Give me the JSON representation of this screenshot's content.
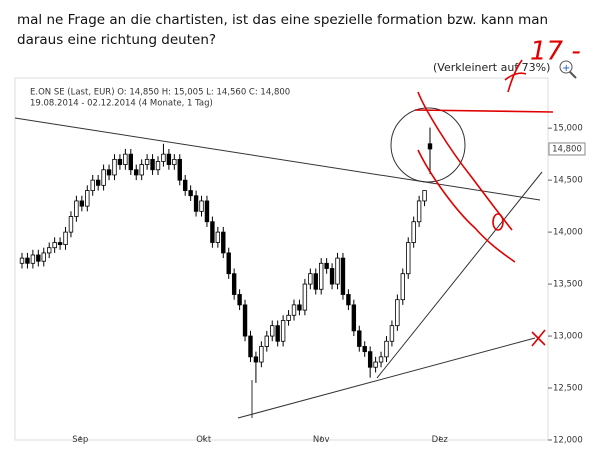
{
  "post": {
    "text_line1": "mal ne Frage an die chartisten, ist das eine spezielle formation bzw. kann man",
    "text_line2": "daraus eine richtung deuten?",
    "zoom_note": "(Verkleinert auf 73%)",
    "annotation": "17 -"
  },
  "chart_data": {
    "type": "candlestick",
    "header": "E.ON SE (Last, EUR)  O: 14,850  H: 15,005  L: 14,560  C: 14,800",
    "range_label": "19.08.2014 - 02.12.2014 (4 Monate, 1 Tag)",
    "last_price_label": {
      "value": 14800,
      "label": "14,800"
    },
    "up_color": "#ffffff",
    "down_color": "#000000",
    "open": [
      13700,
      13750,
      13700,
      13780,
      13720,
      13800,
      13850,
      13900,
      13880,
      14000,
      14150,
      14300,
      14250,
      14400,
      14500,
      14450,
      14600,
      14550,
      14700,
      14650,
      14750,
      14600,
      14550,
      14650,
      14700,
      14600,
      14680,
      14750,
      14650,
      14700,
      14500,
      14400,
      14350,
      14200,
      14300,
      14100,
      13900,
      14000,
      13800,
      13600,
      13400,
      13300,
      13000,
      12800,
      12750,
      12900,
      13000,
      13100,
      12950,
      13150,
      13200,
      13300,
      13250,
      13500,
      13600,
      13450,
      13700,
      13650,
      13500,
      13750,
      13400,
      13300,
      13050,
      12900,
      12850,
      12700,
      12750,
      12800,
      12950,
      13100,
      13350,
      13600,
      13900,
      14100,
      14300,
      14850
    ],
    "high": [
      13800,
      13800,
      13830,
      13830,
      13850,
      13900,
      13950,
      13950,
      14050,
      14200,
      14350,
      14350,
      14450,
      14550,
      14550,
      14650,
      14650,
      14750,
      14750,
      14800,
      14800,
      14650,
      14700,
      14750,
      14750,
      14730,
      14850,
      14800,
      14750,
      14750,
      14550,
      14450,
      14400,
      14350,
      14350,
      14150,
      14050,
      14050,
      13850,
      13650,
      13450,
      13350,
      13050,
      12850,
      12950,
      13050,
      13150,
      13150,
      13200,
      13250,
      13350,
      13350,
      13550,
      13650,
      13650,
      13750,
      13750,
      13700,
      13800,
      13800,
      13450,
      13350,
      13100,
      12950,
      12900,
      12800,
      12850,
      13000,
      13150,
      13400,
      13650,
      13950,
      14150,
      14350,
      14400,
      15005
    ],
    "low": [
      13650,
      13650,
      13650,
      13670,
      13670,
      13750,
      13800,
      13830,
      13830,
      13950,
      14100,
      14200,
      14200,
      14350,
      14400,
      14400,
      14500,
      14500,
      14600,
      14600,
      14550,
      14500,
      14500,
      14600,
      14550,
      14550,
      14630,
      14600,
      14600,
      14450,
      14350,
      14300,
      14150,
      14150,
      14050,
      13850,
      13850,
      13750,
      13550,
      13350,
      13250,
      12950,
      12750,
      12550,
      12700,
      12850,
      12950,
      12900,
      12900,
      13100,
      13150,
      13200,
      13200,
      13450,
      13400,
      13400,
      13600,
      13450,
      13450,
      13350,
      13250,
      13000,
      12850,
      12800,
      12600,
      12650,
      12700,
      12750,
      12900,
      13050,
      13300,
      13550,
      13850,
      14050,
      14250,
      14560
    ],
    "close": [
      13750,
      13700,
      13780,
      13720,
      13800,
      13850,
      13900,
      13880,
      14000,
      14150,
      14300,
      14250,
      14400,
      14500,
      14450,
      14600,
      14550,
      14700,
      14650,
      14750,
      14600,
      14550,
      14650,
      14700,
      14600,
      14680,
      14750,
      14650,
      14700,
      14500,
      14400,
      14350,
      14200,
      14300,
      14100,
      13900,
      14000,
      13800,
      13600,
      13400,
      13300,
      13000,
      12800,
      12750,
      12900,
      13000,
      13100,
      12950,
      13150,
      13200,
      13300,
      13250,
      13500,
      13600,
      13450,
      13700,
      13650,
      13500,
      13750,
      13400,
      13300,
      13050,
      12900,
      12850,
      12700,
      12750,
      12800,
      12950,
      13100,
      13350,
      13600,
      13900,
      14100,
      14300,
      14400,
      14800
    ],
    "xticks": [
      {
        "value": 10.7,
        "label": "Sep"
      },
      {
        "value": 33.4,
        "label": "Okt"
      },
      {
        "value": 55,
        "label": "Nov"
      },
      {
        "value": 76.8,
        "label": "Dez"
      }
    ],
    "ylim": [
      12000,
      15300
    ],
    "yticks": [
      {
        "value": 12000,
        "label": "12,000"
      },
      {
        "value": 12500,
        "label": "12,500"
      },
      {
        "value": 13000,
        "label": "13,000"
      },
      {
        "value": 13500,
        "label": "13,500"
      },
      {
        "value": 14000,
        "label": "14,000"
      },
      {
        "value": 14500,
        "label": "14,500"
      },
      {
        "value": 15000,
        "label": "15,000"
      }
    ]
  }
}
